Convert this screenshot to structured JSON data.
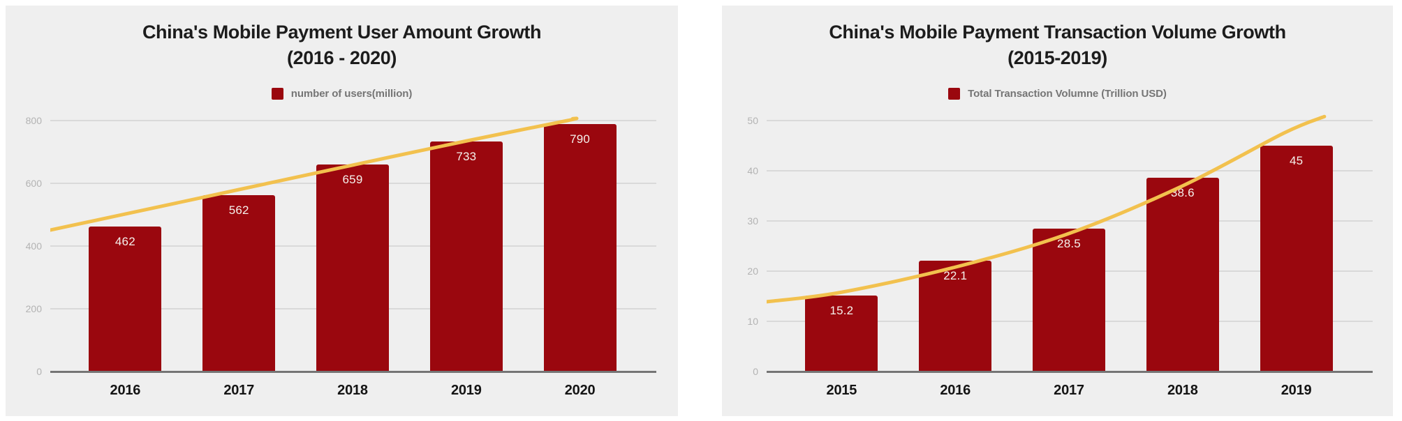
{
  "colors": {
    "panel_background": "#efefef",
    "bar": "#9a070e",
    "trend_line": "#f2c14e",
    "gridline": "#d9d9d9",
    "axis_line": "#757575",
    "ytick_text": "#b3b3b3",
    "xtick_text": "#141414",
    "value_text": "#f5f1ec",
    "legend_text": "#757575",
    "title_text": "#1c1c1c"
  },
  "chart_data": [
    {
      "type": "bar",
      "title_line1": "China's Mobile Payment User Amount Growth",
      "title_line2": "(2016 - 2020)",
      "legend_label": "number of users(million)",
      "legend_position": "top",
      "grid": true,
      "categories": [
        "2016",
        "2017",
        "2018",
        "2019",
        "2020"
      ],
      "values": [
        462,
        562,
        659,
        733,
        790
      ],
      "value_labels": [
        "462",
        "562",
        "659",
        "733",
        "790"
      ],
      "xlabel": "",
      "ylabel": "",
      "ylim": [
        0,
        800
      ],
      "yticks": [
        0,
        200,
        400,
        600,
        800
      ],
      "trendline": true,
      "trend_points": [
        [
          0,
          451
        ],
        [
          0.1236,
          502
        ],
        [
          0.3112,
          580
        ],
        [
          0.4988,
          658
        ],
        [
          0.6865,
          735
        ],
        [
          0.8533,
          800
        ],
        [
          0.862,
          806
        ]
      ]
    },
    {
      "type": "bar",
      "title_line1": "China's Mobile Payment Transaction Volume Growth",
      "title_line2": "(2015-2019)",
      "legend_label": "Total Transaction Volumne (Trillion USD)",
      "legend_position": "top",
      "grid": true,
      "categories": [
        "2015",
        "2016",
        "2017",
        "2018",
        "2019"
      ],
      "values": [
        15.2,
        22.1,
        28.5,
        38.6,
        45
      ],
      "value_labels": [
        "15.2",
        "22.1",
        "28.5",
        "38.6",
        "45"
      ],
      "xlabel": "",
      "ylabel": "",
      "ylim": [
        0,
        50
      ],
      "yticks": [
        0,
        10,
        20,
        30,
        40,
        50
      ],
      "trendline": true,
      "trend_points": [
        [
          0,
          13.9
        ],
        [
          0.1236,
          15.8
        ],
        [
          0.3112,
          20.8
        ],
        [
          0.4988,
          27.5
        ],
        [
          0.6865,
          37
        ],
        [
          0.8533,
          47.5
        ],
        [
          0.9203,
          50.8
        ]
      ]
    }
  ]
}
